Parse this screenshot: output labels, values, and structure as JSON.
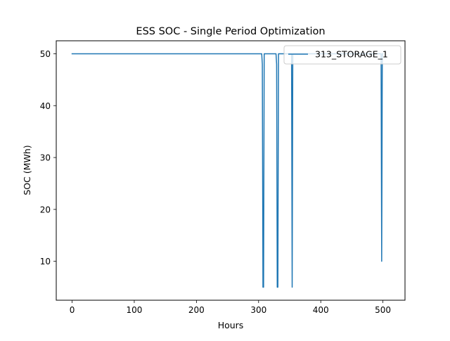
{
  "chart_data": {
    "type": "line",
    "title": "ESS SOC -  Single Period Optimization",
    "xlabel": "Hours",
    "ylabel": "SOC (MWh)",
    "xlim": [
      -25.5,
      535.5
    ],
    "ylim": [
      2.5,
      52.5
    ],
    "xticks": [
      0,
      100,
      200,
      300,
      400,
      500
    ],
    "yticks": [
      10,
      20,
      30,
      40,
      50
    ],
    "grid": false,
    "legend_position": "top-right",
    "series": [
      {
        "name": "313_STORAGE_1",
        "color": "#1f77b4",
        "x": [
          0,
          305,
          306,
          307,
          308,
          309,
          310,
          328,
          329,
          330,
          331,
          332,
          333,
          352,
          353,
          354,
          355,
          356,
          497,
          498,
          499,
          500
        ],
        "y": [
          50,
          50,
          48,
          5,
          5,
          50,
          50,
          50,
          48,
          5,
          5,
          50,
          50,
          50,
          50,
          5,
          50,
          50,
          50,
          10,
          50,
          50
        ]
      }
    ]
  }
}
